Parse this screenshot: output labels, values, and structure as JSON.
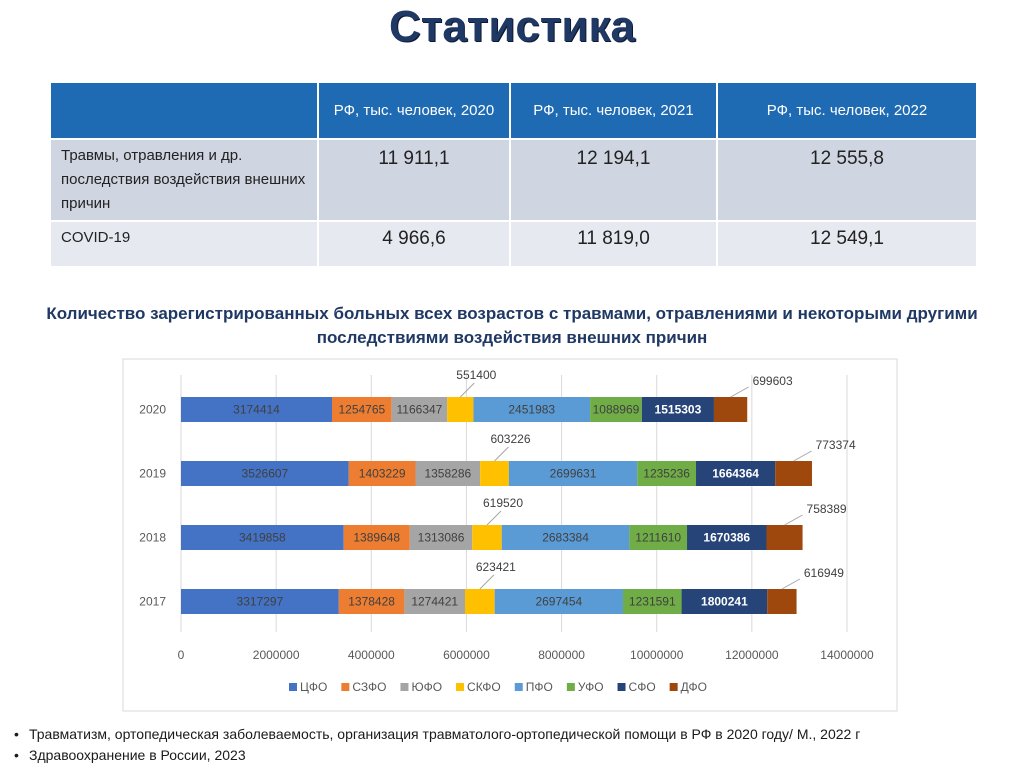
{
  "page_title": "Статистика",
  "table": {
    "headers": [
      "",
      "РФ, тыс. человек, 2020",
      "РФ, тыс. человек, 2021",
      "РФ, тыс. человек, 2022"
    ],
    "rows": [
      {
        "label": "Травмы, отравления и др. последствия воздействия внешних причин",
        "values": [
          "11 911,1",
          "12 194,1",
          "12 555,8"
        ]
      },
      {
        "label": "COVID-19",
        "values": [
          "4 966,6",
          "11 819,0",
          "12 549,1"
        ]
      }
    ]
  },
  "chart_data": {
    "type": "bar",
    "orientation": "horizontal",
    "stacked": true,
    "title": "Количество зарегистрированных больных всех возрастов с травмами, отравлениями и некоторыми другими последствиями воздействия внешних причин",
    "categories": [
      "2020",
      "2019",
      "2018",
      "2017"
    ],
    "series": [
      {
        "name": "ЦФО",
        "color": "#4472c4",
        "values": [
          3174414,
          3526607,
          3419858,
          3317297
        ]
      },
      {
        "name": "СЗФО",
        "color": "#ed7d31",
        "values": [
          1254765,
          1403229,
          1389648,
          1378428
        ]
      },
      {
        "name": "ЮФО",
        "color": "#a5a5a5",
        "values": [
          1166347,
          1358286,
          1313086,
          1274421
        ]
      },
      {
        "name": "СКФО",
        "color": "#ffc000",
        "values": [
          551400,
          603226,
          619520,
          623421
        ]
      },
      {
        "name": "ПФО",
        "color": "#5b9bd5",
        "values": [
          2451983,
          2699631,
          2683384,
          2697454
        ]
      },
      {
        "name": "УФО",
        "color": "#70ad47",
        "values": [
          1088969,
          1235236,
          1211610,
          1231591
        ]
      },
      {
        "name": "СФО",
        "color": "#264478",
        "values": [
          1515303,
          1664364,
          1670386,
          1800241
        ]
      },
      {
        "name": "ДФО",
        "color": "#9e480e",
        "values": [
          699603,
          773374,
          758389,
          616949
        ]
      }
    ],
    "x_ticks": [
      "0",
      "2000000",
      "4000000",
      "6000000",
      "8000000",
      "10000000",
      "12000000",
      "14000000"
    ],
    "xlim": [
      0,
      14000000
    ],
    "legend_position": "bottom",
    "grid": true
  },
  "footnotes": [
    "Травматизм, ортопедическая заболеваемость, организация травматолого-ортопедической помощи в РФ в 2020 году/ М., 2022 г",
    "Здравоохранение в России, 2023"
  ],
  "bullet_char": "•"
}
